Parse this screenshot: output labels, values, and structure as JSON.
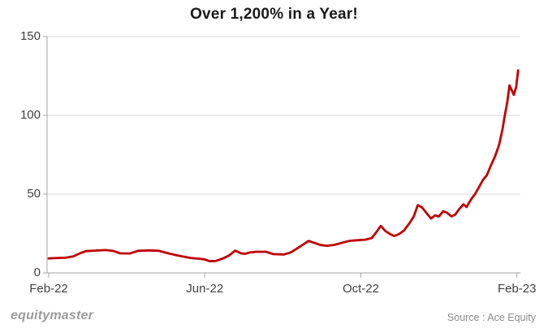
{
  "title": "Over 1,200% in a Year!",
  "footer": {
    "brand": "equitymaster",
    "source": "Source : Ace Equity"
  },
  "colors": {
    "line": "#c00000",
    "grid": "#d9d9d9",
    "axis": "#a6a6a6",
    "text": "#3f3f3f",
    "title": "#1a1a1a",
    "brand": "#9b9b9b",
    "source": "#8c8c8c",
    "background": "#ffffff"
  },
  "chart_data": {
    "type": "line",
    "title": "Over 1,200% in a Year!",
    "xlabel": "",
    "ylabel": "",
    "ylim": [
      0,
      150
    ],
    "y_ticks": [
      0,
      50,
      100,
      150
    ],
    "x_tick_labels": [
      "Feb-22",
      "Jun-22",
      "Oct-22",
      "Feb-23"
    ],
    "x_tick_months": [
      0,
      4,
      8,
      12
    ],
    "xlim_months": [
      0,
      12.1
    ],
    "grid": "horizontal",
    "legend": false,
    "series": [
      {
        "color": "#c00000",
        "points_format": "[months_since_Feb22, percent_value]",
        "points": [
          [
            0,
            9.2
          ],
          [
            0.21,
            9.5
          ],
          [
            0.42,
            9.6
          ],
          [
            0.62,
            10.4
          ],
          [
            0.79,
            12.3
          ],
          [
            0.96,
            13.8
          ],
          [
            1.21,
            14.2
          ],
          [
            1.46,
            14.5
          ],
          [
            1.66,
            13.9
          ],
          [
            1.83,
            12.4
          ],
          [
            2.08,
            12.3
          ],
          [
            2.29,
            14
          ],
          [
            2.6,
            14.3
          ],
          [
            2.83,
            14
          ],
          [
            3.02,
            12.7
          ],
          [
            3.22,
            11.5
          ],
          [
            3.43,
            10.4
          ],
          [
            3.64,
            9.5
          ],
          [
            3.85,
            9
          ],
          [
            3.99,
            8.6
          ],
          [
            4.12,
            7.4
          ],
          [
            4.28,
            7.6
          ],
          [
            4.45,
            9
          ],
          [
            4.62,
            11
          ],
          [
            4.78,
            14.2
          ],
          [
            4.93,
            12.4
          ],
          [
            5.03,
            12.1
          ],
          [
            5.16,
            13
          ],
          [
            5.32,
            13.4
          ],
          [
            5.57,
            13.4
          ],
          [
            5.76,
            11.9
          ],
          [
            6.03,
            11.7
          ],
          [
            6.2,
            13
          ],
          [
            6.34,
            15.1
          ],
          [
            6.49,
            17.5
          ],
          [
            6.66,
            20.3
          ],
          [
            6.78,
            19.3
          ],
          [
            6.97,
            17.7
          ],
          [
            7.13,
            17.2
          ],
          [
            7.32,
            17.8
          ],
          [
            7.53,
            19.2
          ],
          [
            7.7,
            20.3
          ],
          [
            7.9,
            20.7
          ],
          [
            8.11,
            21.1
          ],
          [
            8.28,
            22.1
          ],
          [
            8.4,
            26
          ],
          [
            8.51,
            29.8
          ],
          [
            8.63,
            26.5
          ],
          [
            8.76,
            24.5
          ],
          [
            8.86,
            23.4
          ],
          [
            8.98,
            24.7
          ],
          [
            9.11,
            27
          ],
          [
            9.26,
            32
          ],
          [
            9.36,
            36
          ],
          [
            9.46,
            43
          ],
          [
            9.57,
            41.5
          ],
          [
            9.69,
            37.8
          ],
          [
            9.8,
            34.5
          ],
          [
            9.9,
            36.5
          ],
          [
            10,
            35.8
          ],
          [
            10.11,
            39.2
          ],
          [
            10.21,
            38.2
          ],
          [
            10.32,
            35.8
          ],
          [
            10.42,
            37
          ],
          [
            10.52,
            40.5
          ],
          [
            10.63,
            43.5
          ],
          [
            10.71,
            41.8
          ],
          [
            10.82,
            46.5
          ],
          [
            10.92,
            49.8
          ],
          [
            11.02,
            54
          ],
          [
            11.13,
            59
          ],
          [
            11.23,
            62
          ],
          [
            11.33,
            68
          ],
          [
            11.44,
            74
          ],
          [
            11.54,
            81
          ],
          [
            11.63,
            91
          ],
          [
            11.69,
            100
          ],
          [
            11.75,
            108
          ],
          [
            11.81,
            119
          ],
          [
            11.92,
            113
          ],
          [
            11.98,
            118
          ],
          [
            12.03,
            128.5
          ]
        ]
      }
    ]
  }
}
